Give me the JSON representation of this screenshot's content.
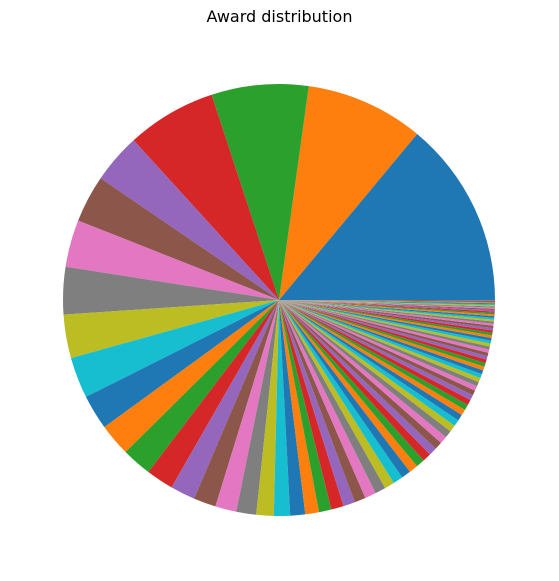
{
  "chart_data": {
    "type": "pie",
    "title": "Award distribution",
    "start_angle": 0,
    "direction": "counterclockwise",
    "labels_shown": false,
    "slices": [
      15.0,
      9.5,
      7.8,
      7.2,
      4.0,
      3.8,
      3.8,
      3.8,
      3.5,
      3.3,
      2.8,
      2.6,
      2.4,
      2.2,
      2.0,
      1.8,
      1.7,
      1.6,
      1.4,
      1.3,
      1.2,
      1.1,
      1.0,
      1.0,
      0.95,
      0.9,
      0.9,
      0.85,
      0.8,
      0.8,
      0.75,
      0.72,
      0.7,
      0.68,
      0.65,
      0.62,
      0.6,
      0.58,
      0.55,
      0.52,
      0.5,
      0.48,
      0.46,
      0.44,
      0.42,
      0.4,
      0.38,
      0.36,
      0.34,
      0.33,
      0.32,
      0.31,
      0.3,
      0.29,
      0.28,
      0.27,
      0.26,
      0.25,
      0.24,
      0.23,
      0.22,
      0.21,
      0.2,
      0.2,
      0.19,
      0.18,
      0.17,
      0.16,
      0.15,
      0.15,
      0.14,
      0.13,
      0.12,
      0.12,
      0.11,
      0.1,
      0.1,
      0.09,
      0.09,
      0.08,
      0.08,
      0.07,
      0.07,
      0.06,
      0.06
    ],
    "colors": [
      "#1f77b4",
      "#ff7f0e",
      "#2ca02c",
      "#d62728",
      "#9467bd",
      "#8c564b",
      "#e377c2",
      "#7f7f7f",
      "#bcbd22",
      "#17becf"
    ]
  }
}
